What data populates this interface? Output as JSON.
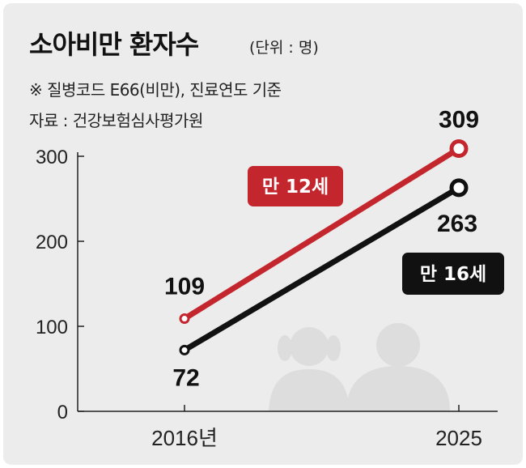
{
  "header": {
    "title": "소아비만 환자수",
    "unit": "(단위 : 명)",
    "note": "※ 질병코드 E66(비만), 진료연도 기준",
    "source": "자료 : 건강보험심사평가원"
  },
  "colors": {
    "background": "#ececec",
    "series_red": "#c4262e",
    "series_black": "#111111",
    "silhouette": "#dddddd"
  },
  "icons": [
    "girl-silhouette-icon",
    "boy-silhouette-icon"
  ],
  "chart_data": {
    "type": "line",
    "title": "소아비만 환자수",
    "x": [
      "2016년",
      "2025"
    ],
    "ylim": [
      0,
      300
    ],
    "yticks": [
      "0",
      "100",
      "200",
      "300"
    ],
    "grid": false,
    "series": [
      {
        "name": "만 12세",
        "values": [
          109,
          309
        ],
        "labels": [
          "109",
          "309"
        ],
        "color": "#c4262e"
      },
      {
        "name": "만 16세",
        "values": [
          72,
          263
        ],
        "labels": [
          "72",
          "263"
        ],
        "color": "#111111"
      }
    ]
  }
}
